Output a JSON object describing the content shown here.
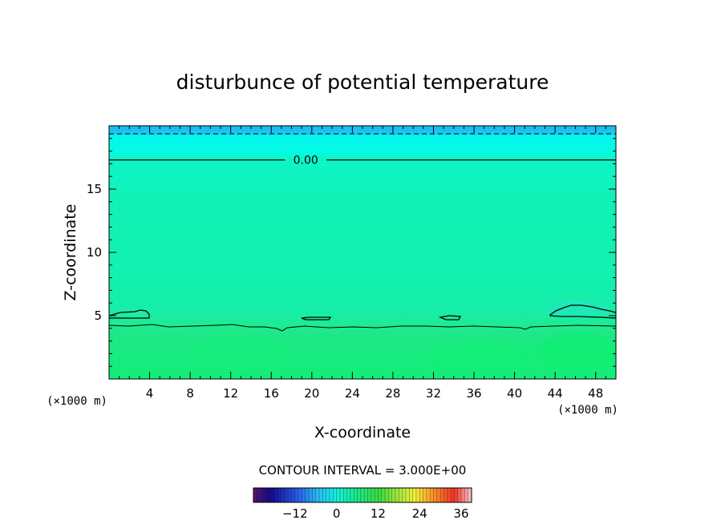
{
  "chart_data": {
    "type": "contour",
    "title": "disturbunce of potential temperature",
    "xlabel": "X-coordinate",
    "ylabel": "Z-coordinate",
    "x_unit": "(×1000 m)",
    "z_unit": "(×1000 m)",
    "xlim": [
      0,
      50
    ],
    "ylim": [
      0,
      20
    ],
    "x_ticks": [
      4,
      8,
      12,
      16,
      20,
      24,
      28,
      32,
      36,
      40,
      44,
      48
    ],
    "y_ticks": [
      5,
      10,
      15
    ],
    "contour_interval_text": "CONTOUR INTERVAL = 3.000E+00",
    "contour_interval": 3.0,
    "contour_labels": [
      {
        "value": "0.00",
        "x": 17.5,
        "z": 17.3
      }
    ],
    "colorbar": {
      "range": [
        -24,
        39
      ],
      "ticks": [
        -12,
        0,
        12,
        24,
        36
      ],
      "tick_labels": [
        "−12",
        "0",
        "12",
        "24",
        "36"
      ]
    },
    "field_bands": [
      {
        "z_range": [
          0,
          4.2
        ],
        "approx_value": 5,
        "color": "#1ee882"
      },
      {
        "z_range": [
          4.2,
          17.5
        ],
        "approx_value": 0,
        "color": "#12f2b2"
      },
      {
        "z_range": [
          17.5,
          18.8
        ],
        "approx_value": -2,
        "color": "#06fae4"
      },
      {
        "z_range": [
          18.8,
          20
        ],
        "approx_value": -5,
        "color": "#1ccaf0"
      }
    ],
    "zero_contour_islands": [
      {
        "x_range": [
          0,
          3.2
        ],
        "z_range": [
          4.8,
          5.3
        ]
      },
      {
        "x_range": [
          19,
          22
        ],
        "z_range": [
          4.7,
          5.0
        ]
      },
      {
        "x_range": [
          32.5,
          34.5
        ],
        "z_range": [
          4.7,
          5.0
        ]
      },
      {
        "x_range": [
          43.5,
          50
        ],
        "z_range": [
          4.9,
          5.9
        ]
      }
    ]
  }
}
